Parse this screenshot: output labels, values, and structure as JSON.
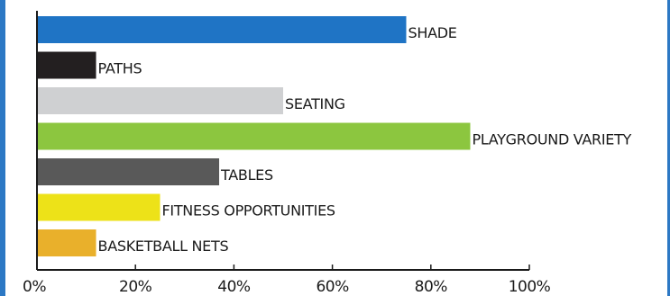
{
  "chart_data": {
    "type": "bar",
    "orientation": "horizontal",
    "categories": [
      "SHADE",
      "PATHS",
      "SEATING",
      "PLAYGROUND VARIETY",
      "TABLES",
      "FITNESS OPPORTUNITIES",
      "BASKETBALL NETS"
    ],
    "values": [
      75,
      12,
      50,
      88,
      37,
      25,
      12
    ],
    "colors": [
      "#1f74c5",
      "#231f20",
      "#cfd0d2",
      "#8cc63f",
      "#595959",
      "#ede218",
      "#e9b02b"
    ],
    "xlim": [
      0,
      100
    ],
    "xticks": [
      "0%",
      "20%",
      "40%",
      "60%",
      "80%",
      "100%"
    ],
    "xtick_values": [
      0,
      20,
      40,
      60,
      80,
      100
    ],
    "title": "",
    "xlabel": "",
    "ylabel": "",
    "grid": false,
    "legend": "none"
  },
  "frame_color": "#2c78c4"
}
